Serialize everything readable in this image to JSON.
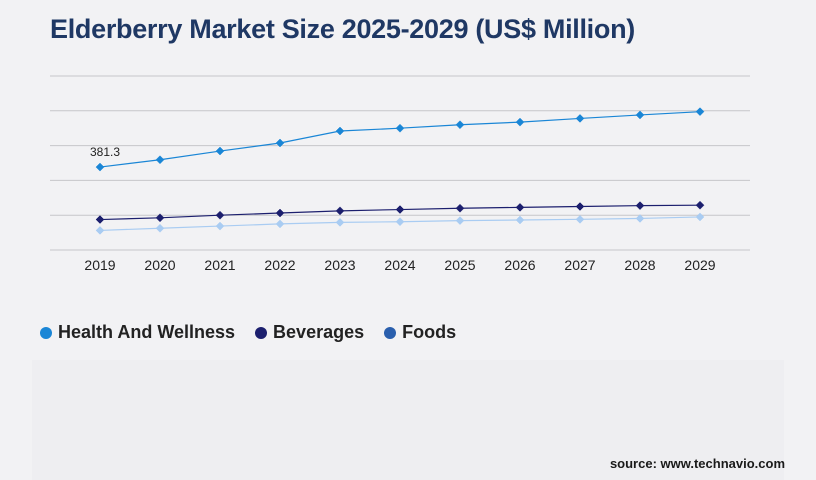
{
  "title": "Elderberry Market Size 2025-2029 (US$ Million)",
  "source": "source: www.technavio.com",
  "chart_data": {
    "type": "line",
    "x": [
      "2019",
      "2020",
      "2021",
      "2022",
      "2023",
      "2024",
      "2025",
      "2026",
      "2027",
      "2028",
      "2029"
    ],
    "ylim": [
      0,
      800
    ],
    "grid": "horizontal",
    "legend_position": "bottom-left",
    "series": [
      {
        "name": "Health And Wellness",
        "color": "#1a86d6",
        "values": [
          381.3,
          415,
          455,
          492,
          547,
          560,
          576,
          588,
          605,
          621,
          636
        ],
        "data_labels": [
          "381.3",
          "",
          "",
          "",
          "",
          "",
          "",
          "",
          "",
          "",
          ""
        ]
      },
      {
        "name": "Beverages",
        "color": "#1c1f6e",
        "values": [
          140,
          148,
          160,
          170,
          180,
          186,
          192,
          196,
          200,
          204,
          206
        ],
        "data_labels": [
          "",
          "",
          "",
          "",
          "",
          "",
          "",
          "",
          "",
          "",
          ""
        ]
      },
      {
        "name": "Foods",
        "color": "#a9ccf2",
        "legend_color": "#2a5fad",
        "values": [
          90,
          100,
          110,
          120,
          127,
          130,
          135,
          138,
          141,
          145,
          152
        ],
        "data_labels": [
          "",
          "",
          "",
          "",
          "",
          "",
          "",
          "",
          "",
          "",
          ""
        ]
      }
    ]
  }
}
